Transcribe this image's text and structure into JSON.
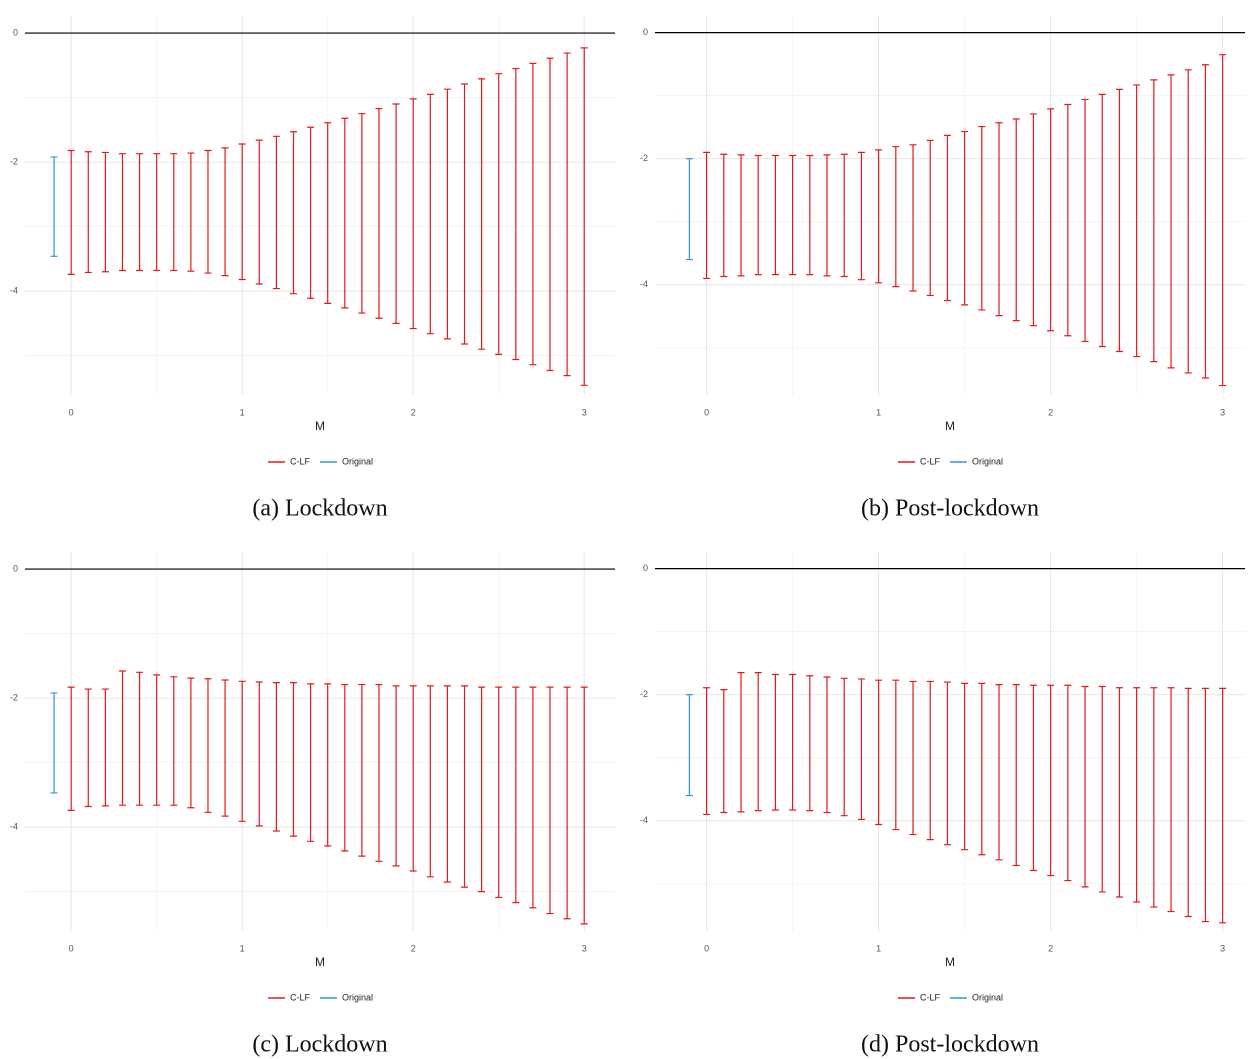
{
  "chart_data": [
    {
      "type": "errorbar",
      "caption": "(a) Lockdown",
      "x_label": "M",
      "xlim": [
        -0.27,
        3.18
      ],
      "xticks": [
        0,
        1,
        2,
        3
      ],
      "xminor": [
        0.5,
        1.5,
        2.5
      ],
      "ylim": [
        -5.61,
        0.28
      ],
      "yticks": [
        0,
        -2,
        -4
      ],
      "yminor": [
        -1,
        -3,
        -5
      ],
      "reference_line": 0,
      "grid": true,
      "series": [
        {
          "name": "C-LF",
          "color": "#e31a1c",
          "x": [
            0,
            0.1,
            0.2,
            0.3,
            0.4,
            0.5,
            0.6,
            0.7,
            0.8,
            0.9,
            1,
            1.1,
            1.2,
            1.3,
            1.4,
            1.5,
            1.6,
            1.7,
            1.8,
            1.9,
            2,
            2.1,
            2.2,
            2.3,
            2.4,
            2.5,
            2.6,
            2.7,
            2.8,
            2.9,
            3
          ],
          "lower": [
            -3.74,
            -3.71,
            -3.7,
            -3.68,
            -3.68,
            -3.68,
            -3.68,
            -3.69,
            -3.72,
            -3.76,
            -3.82,
            -3.89,
            -3.96,
            -4.04,
            -4.11,
            -4.19,
            -4.26,
            -4.34,
            -4.42,
            -4.5,
            -4.58,
            -4.66,
            -4.74,
            -4.82,
            -4.9,
            -4.98,
            -5.06,
            -5.14,
            -5.23,
            -5.31,
            -5.46
          ],
          "upper": [
            -1.82,
            -1.84,
            -1.85,
            -1.87,
            -1.87,
            -1.87,
            -1.87,
            -1.86,
            -1.82,
            -1.78,
            -1.72,
            -1.66,
            -1.6,
            -1.53,
            -1.46,
            -1.39,
            -1.32,
            -1.25,
            -1.17,
            -1.1,
            -1.02,
            -0.95,
            -0.87,
            -0.79,
            -0.71,
            -0.63,
            -0.55,
            -0.47,
            -0.39,
            -0.31,
            -0.23
          ]
        },
        {
          "name": "Original",
          "color": "#2b9ad0",
          "x": [
            -0.1
          ],
          "lower": [
            -3.46
          ],
          "upper": [
            -1.92
          ]
        }
      ]
    },
    {
      "type": "errorbar",
      "caption": "(b) Post-lockdown",
      "x_label": "M",
      "xlim": [
        -0.3,
        3.13
      ],
      "xticks": [
        0,
        1,
        2,
        3
      ],
      "xminor": [
        0.5,
        1.5,
        2.5
      ],
      "ylim": [
        -5.75,
        0.28
      ],
      "yticks": [
        0,
        -2,
        -4
      ],
      "yminor": [
        -1,
        -3,
        -5
      ],
      "reference_line": 0,
      "grid": true,
      "series": [
        {
          "name": "C-LF",
          "color": "#e31a1c",
          "x": [
            0,
            0.1,
            0.2,
            0.3,
            0.4,
            0.5,
            0.6,
            0.7,
            0.8,
            0.9,
            1,
            1.1,
            1.2,
            1.3,
            1.4,
            1.5,
            1.6,
            1.7,
            1.8,
            1.9,
            2,
            2.1,
            2.2,
            2.3,
            2.4,
            2.5,
            2.6,
            2.7,
            2.8,
            2.9,
            3
          ],
          "lower": [
            -3.9,
            -3.87,
            -3.86,
            -3.84,
            -3.84,
            -3.84,
            -3.84,
            -3.86,
            -3.87,
            -3.92,
            -3.97,
            -4.03,
            -4.1,
            -4.17,
            -4.25,
            -4.32,
            -4.4,
            -4.49,
            -4.57,
            -4.65,
            -4.73,
            -4.81,
            -4.9,
            -4.98,
            -5.06,
            -5.14,
            -5.22,
            -5.32,
            -5.4,
            -5.48,
            -5.6
          ],
          "upper": [
            -1.9,
            -1.93,
            -1.94,
            -1.95,
            -1.95,
            -1.95,
            -1.95,
            -1.94,
            -1.93,
            -1.9,
            -1.86,
            -1.81,
            -1.78,
            -1.71,
            -1.63,
            -1.57,
            -1.49,
            -1.43,
            -1.37,
            -1.29,
            -1.21,
            -1.14,
            -1.06,
            -0.98,
            -0.9,
            -0.83,
            -0.75,
            -0.67,
            -0.59,
            -0.51,
            -0.35
          ]
        },
        {
          "name": "Original",
          "color": "#2b9ad0",
          "x": [
            -0.1
          ],
          "lower": [
            -3.6
          ],
          "upper": [
            -2.0
          ]
        }
      ]
    },
    {
      "type": "errorbar",
      "caption": "(c) Lockdown",
      "x_label": "M",
      "xlim": [
        -0.27,
        3.18
      ],
      "xticks": [
        0,
        1,
        2,
        3
      ],
      "xminor": [
        0.5,
        1.5,
        2.5
      ],
      "ylim": [
        -5.61,
        0.28
      ],
      "yticks": [
        0,
        -2,
        -4
      ],
      "yminor": [
        -1,
        -3,
        -5
      ],
      "reference_line": 0,
      "grid": true,
      "series": [
        {
          "name": "C-LF",
          "color": "#e31a1c",
          "x": [
            0,
            0.1,
            0.2,
            0.3,
            0.4,
            0.5,
            0.6,
            0.7,
            0.8,
            0.9,
            1,
            1.1,
            1.2,
            1.3,
            1.4,
            1.5,
            1.6,
            1.7,
            1.8,
            1.9,
            2,
            2.1,
            2.2,
            2.3,
            2.4,
            2.5,
            2.6,
            2.7,
            2.8,
            2.9,
            3
          ],
          "lower": [
            -3.74,
            -3.68,
            -3.67,
            -3.66,
            -3.66,
            -3.66,
            -3.66,
            -3.7,
            -3.77,
            -3.83,
            -3.91,
            -3.98,
            -4.06,
            -4.14,
            -4.22,
            -4.29,
            -4.37,
            -4.45,
            -4.53,
            -4.6,
            -4.68,
            -4.77,
            -4.85,
            -4.93,
            -5.0,
            -5.09,
            -5.17,
            -5.25,
            -5.34,
            -5.42,
            -5.5
          ],
          "upper": [
            -1.83,
            -1.86,
            -1.86,
            -1.58,
            -1.6,
            -1.64,
            -1.67,
            -1.69,
            -1.7,
            -1.72,
            -1.74,
            -1.75,
            -1.76,
            -1.76,
            -1.78,
            -1.78,
            -1.79,
            -1.79,
            -1.79,
            -1.81,
            -1.81,
            -1.81,
            -1.81,
            -1.81,
            -1.83,
            -1.83,
            -1.83,
            -1.83,
            -1.83,
            -1.83,
            -1.83
          ]
        },
        {
          "name": "Original",
          "color": "#2b9ad0",
          "x": [
            -0.1
          ],
          "lower": [
            -3.47
          ],
          "upper": [
            -1.92
          ]
        }
      ]
    },
    {
      "type": "errorbar",
      "caption": "(d) Post-lockdown",
      "x_label": "M",
      "xlim": [
        -0.3,
        3.13
      ],
      "xticks": [
        0,
        1,
        2,
        3
      ],
      "xminor": [
        0.5,
        1.5,
        2.5
      ],
      "ylim": [
        -5.75,
        0.28
      ],
      "yticks": [
        0,
        -2,
        -4
      ],
      "yminor": [
        -1,
        -3,
        -5
      ],
      "reference_line": 0,
      "grid": true,
      "series": [
        {
          "name": "C-LF",
          "color": "#e31a1c",
          "x": [
            0,
            0.1,
            0.2,
            0.3,
            0.4,
            0.5,
            0.6,
            0.7,
            0.8,
            0.9,
            1,
            1.1,
            1.2,
            1.3,
            1.4,
            1.5,
            1.6,
            1.7,
            1.8,
            1.9,
            2,
            2.1,
            2.2,
            2.3,
            2.4,
            2.5,
            2.6,
            2.7,
            2.8,
            2.9,
            3
          ],
          "lower": [
            -3.9,
            -3.87,
            -3.86,
            -3.84,
            -3.83,
            -3.83,
            -3.84,
            -3.87,
            -3.92,
            -3.98,
            -4.06,
            -4.14,
            -4.22,
            -4.3,
            -4.38,
            -4.46,
            -4.54,
            -4.62,
            -4.71,
            -4.79,
            -4.87,
            -4.95,
            -5.05,
            -5.13,
            -5.21,
            -5.29,
            -5.37,
            -5.44,
            -5.52,
            -5.6,
            -5.62
          ],
          "upper": [
            -1.89,
            -1.92,
            -1.65,
            -1.65,
            -1.68,
            -1.68,
            -1.7,
            -1.72,
            -1.74,
            -1.75,
            -1.77,
            -1.77,
            -1.79,
            -1.79,
            -1.8,
            -1.82,
            -1.82,
            -1.84,
            -1.84,
            -1.85,
            -1.85,
            -1.85,
            -1.87,
            -1.87,
            -1.89,
            -1.89,
            -1.89,
            -1.89,
            -1.9,
            -1.9,
            -1.9
          ]
        },
        {
          "name": "Original",
          "color": "#2b9ad0",
          "x": [
            -0.1
          ],
          "lower": [
            -3.6
          ],
          "upper": [
            -2.0
          ]
        }
      ]
    }
  ]
}
